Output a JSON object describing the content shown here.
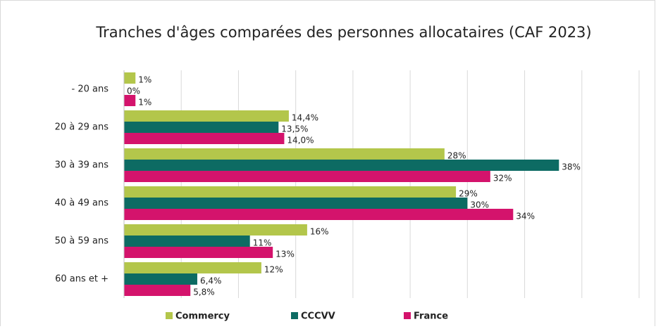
{
  "chart_data": {
    "type": "hbar",
    "title": "Tranches d'âges comparées des personnes allocataires (CAF 2023)",
    "categories": [
      "- 20 ans",
      "20 à 29 ans",
      "30 à 39 ans",
      "40 à 49 ans",
      "50 à 59 ans",
      "60 ans et +"
    ],
    "series": [
      {
        "name": "Commercy",
        "color": "#b3c64b",
        "values": [
          1,
          14.4,
          28,
          29,
          16,
          12
        ],
        "value_labels": [
          "1%",
          "14,4%",
          "28%",
          "29%",
          "16%",
          "12%"
        ]
      },
      {
        "name": "CCCVV",
        "color": "#0d6b63",
        "values": [
          0,
          13.5,
          38,
          30,
          11,
          6.4
        ],
        "value_labels": [
          "0%",
          "13,5%",
          "38%",
          "30%",
          "11%",
          "6,4%"
        ]
      },
      {
        "name": "France",
        "color": "#d4136c",
        "values": [
          1,
          14.0,
          32,
          34,
          13,
          5.8
        ],
        "value_labels": [
          "1%",
          "14,0%",
          "32%",
          "34%",
          "13%",
          "5,8%"
        ]
      }
    ],
    "xlim": [
      0,
      45
    ],
    "xticks": [
      0,
      5,
      10,
      15,
      20,
      25,
      30,
      35,
      40,
      45
    ],
    "grid": true,
    "legend": "bottom"
  }
}
